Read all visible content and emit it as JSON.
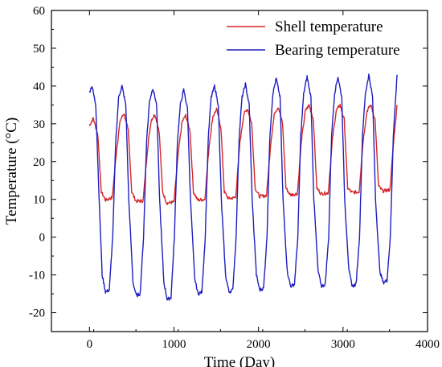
{
  "chart_data": {
    "type": "line",
    "xlabel": "Time (Day)",
    "ylabel": "Temperature (°C)",
    "xlim": [
      -450,
      4000
    ],
    "ylim": [
      -25,
      60
    ],
    "xticks": [
      0,
      1000,
      2000,
      3000,
      4000
    ],
    "yticks": [
      -20,
      -10,
      0,
      10,
      20,
      30,
      40,
      50,
      60
    ],
    "legend_position": "top-right",
    "grid": false,
    "series": [
      {
        "name": "Shell temperature",
        "color": "#d62728",
        "x": [
          0,
          45,
          100,
          140,
          190,
          270,
          320,
          365,
          410,
          460,
          500,
          550,
          635,
          685,
          730,
          775,
          825,
          865,
          915,
          1000,
          1050,
          1095,
          1140,
          1190,
          1230,
          1280,
          1365,
          1415,
          1460,
          1505,
          1555,
          1595,
          1645,
          1730,
          1780,
          1825,
          1870,
          1920,
          1960,
          2010,
          2095,
          2145,
          2190,
          2235,
          2285,
          2325,
          2375,
          2460,
          2510,
          2555,
          2600,
          2650,
          2690,
          2740,
          2825,
          2875,
          2920,
          2965,
          3015,
          3055,
          3105,
          3190,
          3240,
          3285,
          3330,
          3380,
          3420,
          3470,
          3555,
          3605,
          3640
        ],
        "y": [
          29.5,
          31.5,
          27,
          12,
          9.8,
          10.5,
          23,
          31,
          32.8,
          28,
          12,
          9.5,
          9.6,
          23,
          31,
          32.5,
          28,
          12,
          9,
          9.3,
          22,
          30.5,
          32.2,
          28,
          12,
          9.8,
          10,
          24,
          32,
          33.8,
          29,
          12,
          10.2,
          10.5,
          25,
          32.5,
          34,
          30,
          13,
          10.8,
          11,
          25,
          33,
          34.5,
          30,
          13,
          11.2,
          11.5,
          26,
          33.5,
          35,
          31,
          13,
          11.5,
          11.7,
          26,
          33.5,
          35,
          31,
          13,
          11.8,
          12,
          26,
          33.5,
          35,
          31,
          13.5,
          12.2,
          12.5,
          27,
          35
        ]
      },
      {
        "name": "Bearing temperature",
        "color": "#1f1fbf",
        "x": [
          0,
          30,
          75,
          115,
          150,
          190,
          235,
          275,
          310,
          345,
          385,
          430,
          465,
          515,
          555,
          600,
          640,
          675,
          710,
          750,
          795,
          830,
          880,
          920,
          965,
          1005,
          1040,
          1075,
          1115,
          1160,
          1195,
          1245,
          1285,
          1330,
          1370,
          1405,
          1440,
          1480,
          1525,
          1560,
          1610,
          1650,
          1695,
          1735,
          1770,
          1805,
          1845,
          1890,
          1925,
          1975,
          2015,
          2060,
          2100,
          2135,
          2170,
          2210,
          2255,
          2290,
          2340,
          2380,
          2425,
          2465,
          2500,
          2535,
          2575,
          2620,
          2655,
          2705,
          2745,
          2790,
          2830,
          2865,
          2900,
          2940,
          2985,
          3020,
          3070,
          3110,
          3155,
          3195,
          3230,
          3265,
          3305,
          3350,
          3385,
          3435,
          3475,
          3520,
          3560,
          3595,
          3640
        ],
        "y": [
          38.5,
          40,
          35,
          10,
          -10,
          -14.5,
          -14,
          0,
          25,
          37,
          40,
          35,
          10,
          -12,
          -15.5,
          -15,
          0,
          25,
          36,
          39.5,
          35,
          10,
          -12,
          -16.5,
          -16,
          0,
          25,
          35,
          39,
          34,
          10,
          -11,
          -15,
          -14.5,
          0,
          26,
          37,
          40,
          35,
          10,
          -10,
          -14.5,
          -14,
          0,
          26,
          37,
          40.5,
          35,
          10,
          -10,
          -14,
          -13.5,
          0,
          27,
          38,
          42,
          37,
          10,
          -9,
          -13,
          -12.5,
          0,
          27,
          38,
          42.5,
          37,
          10,
          -9,
          -13,
          -12.5,
          0,
          27,
          38,
          42.5,
          37,
          10,
          -9,
          -13,
          -12.5,
          0,
          27,
          38,
          43,
          37,
          10,
          -9,
          -12,
          -11.5,
          0,
          27,
          43
        ]
      }
    ]
  }
}
